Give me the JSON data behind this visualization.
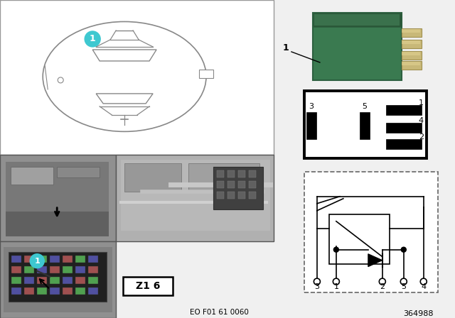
{
  "bg_color": "#f0f0f0",
  "white": "#ffffff",
  "black": "#000000",
  "cyan": "#3ec8d0",
  "gray_photo": "#a8a8a8",
  "gray_photo2": "#c8c8c8",
  "gray_dark": "#686868",
  "relay_green": "#3a7a50",
  "relay_green2": "#2d6040",
  "pin_metal": "#c8b878",
  "car_line": "#888888",
  "part_number": "364988",
  "eo_number": "EO F01 61 0060"
}
